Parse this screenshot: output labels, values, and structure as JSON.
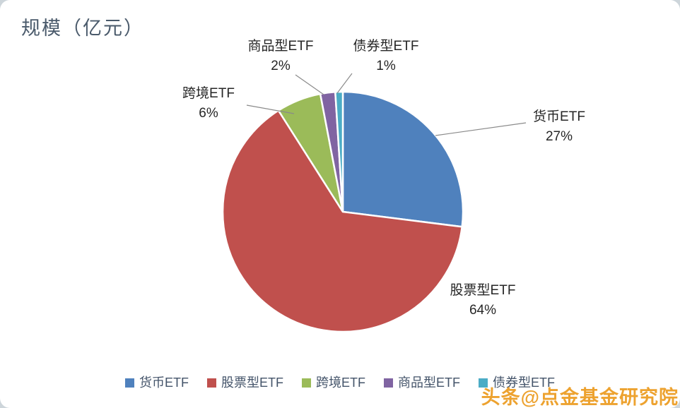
{
  "chart_data": {
    "type": "pie",
    "title": "规模（亿元）",
    "start_angle_deg": 0,
    "direction": "clockwise",
    "legend_position": "bottom",
    "slices": [
      {
        "label": "货币ETF",
        "pct": 27,
        "pct_label": "27%",
        "color": "#4f81bd"
      },
      {
        "label": "股票型ETF",
        "pct": 64,
        "pct_label": "64%",
        "color": "#c0504d"
      },
      {
        "label": "跨境ETF",
        "pct": 6,
        "pct_label": "6%",
        "color": "#9bbb59"
      },
      {
        "label": "商品型ETF",
        "pct": 2,
        "pct_label": "2%",
        "color": "#8064a2"
      },
      {
        "label": "债券型ETF",
        "pct": 1,
        "pct_label": "1%",
        "color": "#4bacc6"
      }
    ]
  },
  "watermark": {
    "text": "头条@点金基金研究院",
    "color": "#eda22f"
  }
}
